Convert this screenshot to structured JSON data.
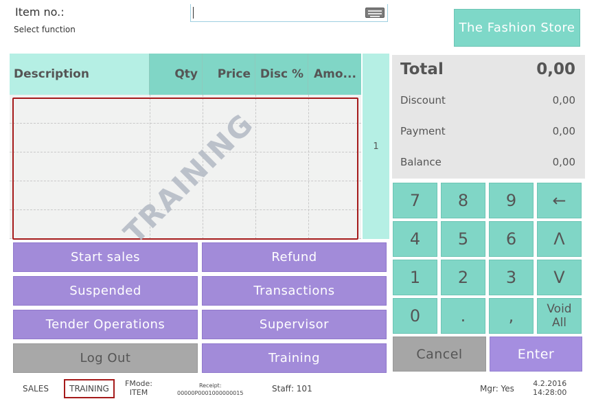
{
  "header": {
    "item_label": "Item no.:",
    "function_label": "Select function",
    "item_value": "",
    "keyboard_icon": "keyboard-icon",
    "store_name": "The Fashion Store"
  },
  "grid": {
    "columns": [
      "Description",
      "Qty",
      "Price",
      "Disc %",
      "Amo..."
    ],
    "rows": [],
    "watermark": "TRAINING",
    "page_number": "1"
  },
  "totals": {
    "total_label": "Total",
    "total_value": "0,00",
    "discount_label": "Discount",
    "discount_value": "0,00",
    "payment_label": "Payment",
    "payment_value": "0,00",
    "balance_label": "Balance",
    "balance_value": "0,00"
  },
  "keypad": {
    "k7": "7",
    "k8": "8",
    "k9": "9",
    "backspace": "←",
    "k4": "4",
    "k5": "5",
    "k6": "6",
    "up": "Λ",
    "k1": "1",
    "k2": "2",
    "k3": "3",
    "down": "V",
    "k0": "0",
    "dot": ".",
    "comma": ",",
    "void_line1": "Void",
    "void_line2": "All",
    "cancel": "Cancel",
    "enter": "Enter"
  },
  "functions": {
    "start_sales": "Start sales",
    "refund": "Refund",
    "suspended": "Suspended",
    "transactions": "Transactions",
    "tender_operations": "Tender Operations",
    "supervisor": "Supervisor",
    "log_out": "Log Out",
    "training": "Training"
  },
  "status_bar": {
    "mode": "SALES",
    "training": "TRAINING",
    "fmode_label": "FMode:",
    "fmode_value": "ITEM",
    "receipt_label": "Receipt:",
    "receipt_value": "00000P0001000000015",
    "staff": "Staff: 101",
    "mgr": "Mgr: Yes",
    "date": "4.2.2016",
    "time": "14:28:00"
  },
  "colors": {
    "teal_light": "#b5efe4",
    "teal": "#80d6c6",
    "purple": "#a28bd9",
    "gray": "#a8a8a8",
    "highlight_red": "#a51a1a"
  }
}
